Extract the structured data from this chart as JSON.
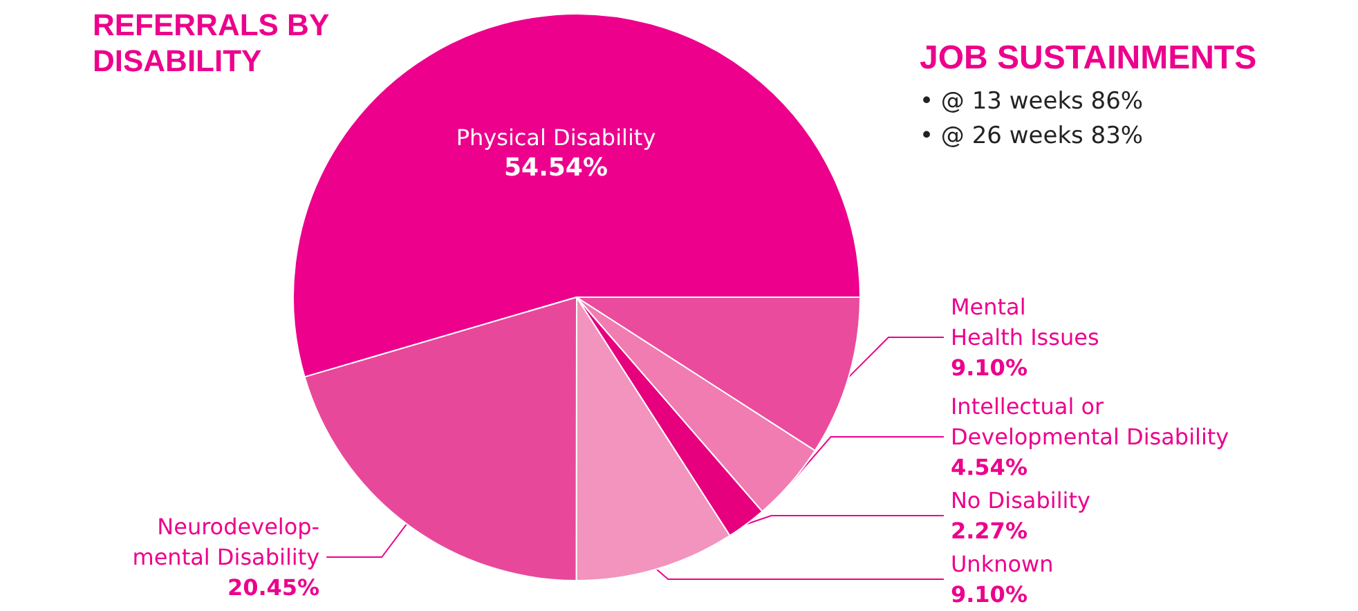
{
  "chart_data": {
    "type": "pie",
    "title": "REFERRALS BY\nDISABILITY",
    "categories": [
      "Physical Disability",
      "Neurodevelop-\nmental Disability",
      "Unknown",
      "No Disability",
      "Intellectual or\nDevelopmental Disability",
      "Mental\nHealth Issues"
    ],
    "values": [
      54.54,
      20.45,
      9.1,
      2.27,
      4.54,
      9.1
    ],
    "value_labels": [
      "54.54%",
      "20.45%",
      "9.10%",
      "2.27%",
      "4.54%",
      "9.10%"
    ],
    "colors": [
      "#ec008c",
      "#e8489a",
      "#f294bd",
      "#e6007e",
      "#f07cb2",
      "#ea4b9c"
    ],
    "annotations": [
      "JOB SUSTAINMENTS",
      "• @ 13 weeks 86%",
      "• @ 26 weeks 83%"
    ]
  }
}
